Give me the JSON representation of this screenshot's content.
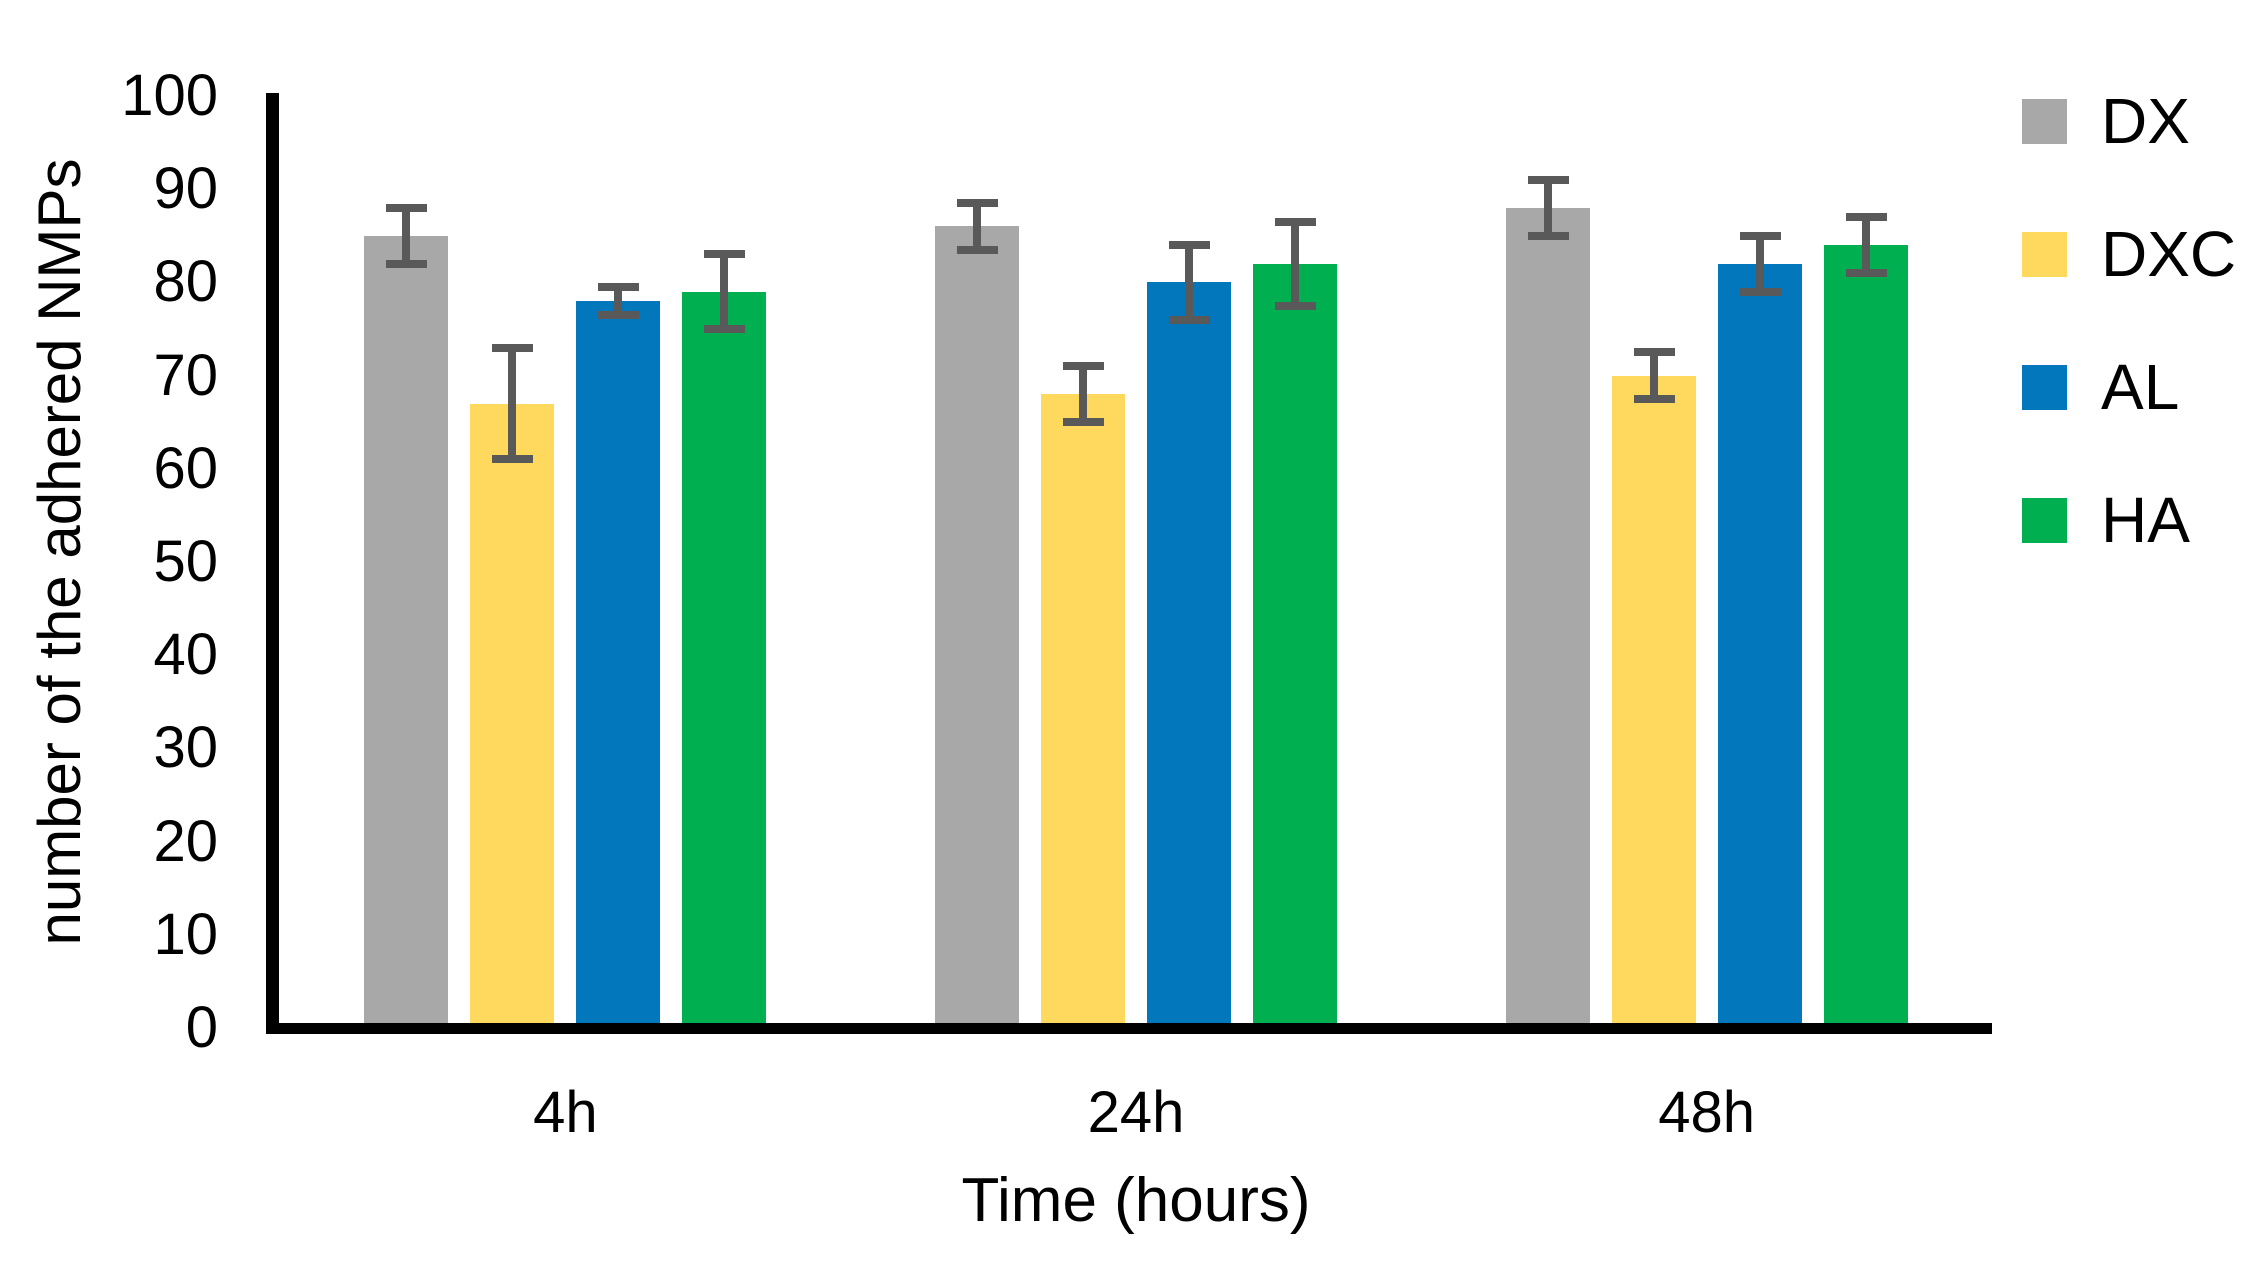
{
  "chart_data": {
    "type": "bar",
    "title": "",
    "xlabel": "Time (hours)",
    "ylabel": "number of the adhered NMPs",
    "categories": [
      "4h",
      "24h",
      "48h"
    ],
    "series": [
      {
        "name": "DX",
        "color": "#A8A8A8",
        "values": [
          85,
          86,
          88
        ],
        "errors": [
          3,
          2.5,
          3
        ]
      },
      {
        "name": "DXC",
        "color": "#FFD95E",
        "values": [
          67,
          68,
          70
        ],
        "errors": [
          6,
          3,
          2.5
        ]
      },
      {
        "name": "AL",
        "color": "#0377BC",
        "values": [
          78,
          80,
          82
        ],
        "errors": [
          1.5,
          4,
          3
        ]
      },
      {
        "name": "HA",
        "color": "#00B050",
        "values": [
          79,
          82,
          84
        ],
        "errors": [
          4,
          4.5,
          3
        ]
      }
    ],
    "ylim": [
      0,
      100
    ],
    "yticks": [
      0,
      10,
      20,
      30,
      40,
      50,
      60,
      70,
      80,
      90,
      100
    ],
    "grid": false,
    "legend_position": "right",
    "error_bar_color": "#595959",
    "axis_color": "#000000",
    "background_color": "#FFFFFF"
  }
}
